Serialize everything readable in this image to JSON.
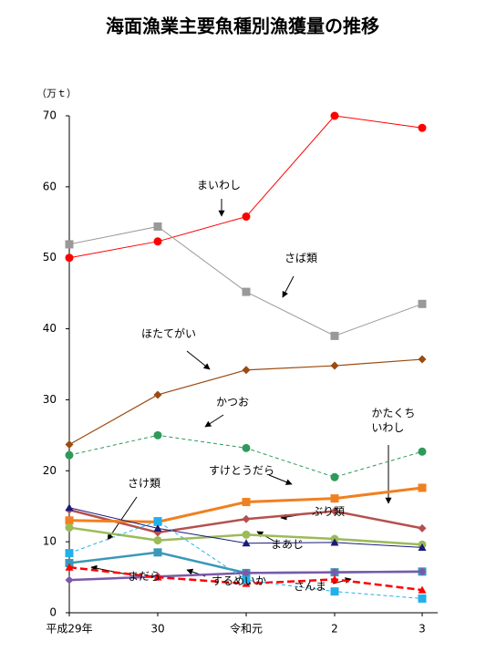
{
  "chart_data": {
    "type": "line",
    "title": "海面漁業主要魚種別漁獲量の推移",
    "y_label": "（万ｔ）",
    "categories": [
      "平成29年",
      "30",
      "令和元",
      "2",
      "3"
    ],
    "ylim": [
      0,
      70
    ],
    "yticks": [
      0,
      10,
      20,
      30,
      40,
      50,
      60,
      70
    ],
    "series": [
      {
        "name": "まいわし",
        "color": "#ff0000",
        "marker": "circle",
        "width": 1,
        "dashed": false,
        "values": [
          50.0,
          52.3,
          55.8,
          70.0,
          68.3
        ]
      },
      {
        "name": "さば類",
        "color": "#999999",
        "marker": "square",
        "width": 1,
        "dashed": false,
        "values": [
          51.9,
          54.4,
          45.2,
          39.0,
          43.5
        ]
      },
      {
        "name": "ほたてがい",
        "color": "#9c4a10",
        "marker": "diamond",
        "width": 1.2,
        "dashed": false,
        "values": [
          23.7,
          30.7,
          34.2,
          34.8,
          35.7
        ]
      },
      {
        "name": "かつお",
        "color": "#2e9a5a",
        "marker": "circle",
        "width": 1,
        "dashed": true,
        "values": [
          22.2,
          25.0,
          23.2,
          19.1,
          22.7
        ]
      },
      {
        "name": "かたくちいわし",
        "color": "#b5504e",
        "marker": "diamond",
        "width": 2.5,
        "dashed": false,
        "values": [
          14.5,
          11.3,
          13.2,
          14.3,
          11.9
        ]
      },
      {
        "name": "すけとうだら",
        "color": "#f08020",
        "marker": "square",
        "width": 3,
        "dashed": false,
        "values": [
          13.0,
          12.8,
          15.6,
          16.1,
          17.6
        ]
      },
      {
        "name": "さけ類",
        "color": "#3a98b8",
        "marker": "square",
        "width": 2.5,
        "dashed": false,
        "values": [
          7.0,
          8.5,
          5.6,
          5.7,
          5.8
        ]
      },
      {
        "name": "ぶり類",
        "color": "#9bbb59",
        "marker": "circle",
        "width": 2.5,
        "dashed": false,
        "values": [
          12.0,
          10.2,
          11.0,
          10.4,
          9.6
        ]
      },
      {
        "name": "まあじ",
        "color": "#1a1a7a",
        "marker": "triangle",
        "width": 1,
        "dashed": false,
        "values": [
          14.8,
          11.9,
          9.8,
          9.9,
          9.2
        ]
      },
      {
        "name": "まだら",
        "color": "#7a5aa8",
        "marker": "diamond",
        "width": 2.5,
        "dashed": false,
        "values": [
          4.6,
          5.1,
          5.6,
          5.7,
          5.8
        ]
      },
      {
        "name": "するめいか",
        "color": "#ff0000",
        "marker": "triangle",
        "width": 2.5,
        "dashed": true,
        "values": [
          6.4,
          5.0,
          4.1,
          4.7,
          3.2
        ]
      },
      {
        "name": "さんま",
        "color": "#22b0e8",
        "marker": "square",
        "width": 1,
        "dashed": true,
        "values": [
          8.4,
          12.9,
          4.6,
          3.0,
          2.0
        ]
      }
    ]
  }
}
